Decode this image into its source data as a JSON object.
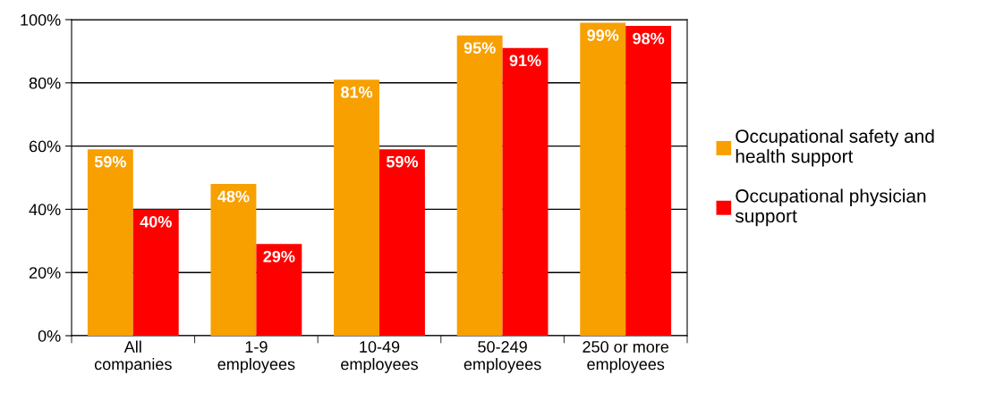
{
  "chart_data": {
    "type": "bar",
    "categories": [
      "All\ncompanies",
      "1-9\nemployees",
      "10-49\nemployees",
      "50-249\nemployees",
      "250 or more\nemployees"
    ],
    "series": [
      {
        "name": "Occupational safety and\nhealth support",
        "color": "#f7a000",
        "values": [
          59,
          48,
          81,
          95,
          99
        ],
        "value_labels": [
          "59%",
          "48%",
          "81%",
          "95%",
          "99%"
        ]
      },
      {
        "name": "Occupational physician\nsupport",
        "color": "#ff0000",
        "values": [
          40,
          29,
          59,
          91,
          98
        ],
        "value_labels": [
          "40%",
          "29%",
          "59%",
          "91%",
          "98%"
        ]
      }
    ],
    "ylim": [
      0,
      100
    ],
    "yticks": [
      {
        "value": 0,
        "label": "0%"
      },
      {
        "value": 20,
        "label": "20%"
      },
      {
        "value": 40,
        "label": "40%"
      },
      {
        "value": 60,
        "label": "60%"
      },
      {
        "value": 80,
        "label": "80%"
      },
      {
        "value": 100,
        "label": "100%"
      }
    ],
    "grid": "y",
    "legend": "right"
  }
}
